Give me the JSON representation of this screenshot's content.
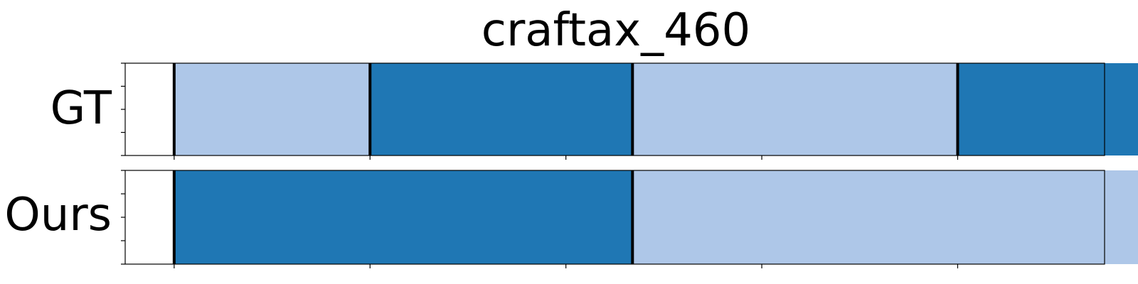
{
  "chart_data": {
    "type": "segmentation",
    "title": "craftax_460",
    "xlim": [
      0,
      1
    ],
    "colors": {
      "light": "#aec7e8",
      "dark": "#1f77b4"
    },
    "rows": [
      {
        "label": "GT",
        "segments": [
          {
            "start": 0.05,
            "end": 0.25,
            "color": "light"
          },
          {
            "start": 0.25,
            "end": 0.518,
            "color": "dark"
          },
          {
            "start": 0.518,
            "end": 0.85,
            "color": "light"
          },
          {
            "start": 0.85,
            "end": 1.05,
            "color": "dark"
          }
        ],
        "boundaries": [
          0.05,
          0.25,
          0.518,
          0.85,
          1.05
        ]
      },
      {
        "label": "Ours",
        "segments": [
          {
            "start": 0.05,
            "end": 0.518,
            "color": "dark"
          },
          {
            "start": 0.518,
            "end": 1.05,
            "color": "light"
          }
        ],
        "boundaries": [
          0.05,
          0.518,
          1.05
        ]
      }
    ],
    "x_ticks": [
      0.05,
      0.25,
      0.45,
      0.65,
      0.85,
      1.05
    ],
    "y_ticks": 5
  }
}
